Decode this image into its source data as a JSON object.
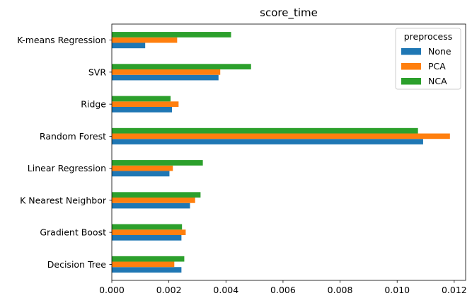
{
  "chart_data": {
    "type": "bar",
    "orientation": "horizontal",
    "title": "score_time",
    "xlabel": "",
    "ylabel": "",
    "xlim": [
      0,
      0.0124
    ],
    "xticks": [
      0.0,
      0.002,
      0.004,
      0.006,
      0.008,
      0.01,
      0.012
    ],
    "xtick_labels": [
      "0.000",
      "0.002",
      "0.004",
      "0.006",
      "0.008",
      "0.010",
      "0.012"
    ],
    "categories": [
      "Decision Tree",
      "Gradient Boost",
      "K Nearest Neighbor",
      "Linear Regression",
      "Random Forest",
      "Ridge",
      "SVR",
      "K-means Regression"
    ],
    "series": [
      {
        "name": "None",
        "color": "#1f77b4",
        "values": [
          0.00244,
          0.00244,
          0.00274,
          0.00202,
          0.01091,
          0.00211,
          0.00374,
          0.00117
        ]
      },
      {
        "name": "PCA",
        "color": "#ff7f0e",
        "values": [
          0.00219,
          0.00259,
          0.00292,
          0.00214,
          0.01185,
          0.00234,
          0.0038,
          0.00229
        ]
      },
      {
        "name": "NCA",
        "color": "#2ca02c",
        "values": [
          0.00254,
          0.00246,
          0.00311,
          0.00319,
          0.01073,
          0.00206,
          0.00488,
          0.00418
        ]
      }
    ],
    "grid": false,
    "legend": {
      "title": "preprocess",
      "placement": "top-right"
    }
  }
}
